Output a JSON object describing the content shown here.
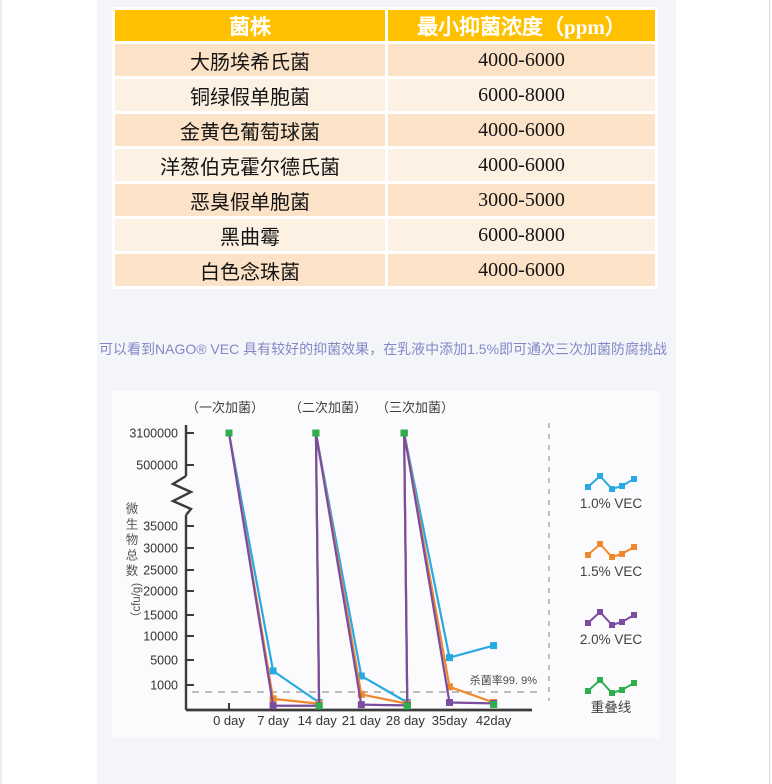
{
  "table": {
    "headers": [
      "菌株",
      "最小抑菌浓度（ppm）"
    ],
    "rows": [
      {
        "strain": "大肠埃希氏菌",
        "mic": "4000-6000"
      },
      {
        "strain": "铜绿假单胞菌",
        "mic": "6000-8000"
      },
      {
        "strain": "金黄色葡萄球菌",
        "mic": "4000-6000"
      },
      {
        "strain": "洋葱伯克霍尔德氏菌",
        "mic": "4000-6000"
      },
      {
        "strain": "恶臭假单胞菌",
        "mic": "3000-5000"
      },
      {
        "strain": "黑曲霉",
        "mic": "6000-8000"
      },
      {
        "strain": "白色念珠菌",
        "mic": "4000-6000"
      }
    ],
    "colors": {
      "header_bg": "#ffc000",
      "header_text": "#ffffff",
      "row_odd_bg": "#fce3c8",
      "row_even_bg": "#fdf1e3"
    }
  },
  "paragraph": {
    "text": "可以看到NAGO® VEC 具有较好的抑菌效果，在乳液中添加1.5%即可通次三次加菌防腐挑战",
    "color": "#8288c7"
  },
  "chart_data": {
    "type": "line",
    "annotations": [
      "（一次加菌）",
      "（二次加菌）",
      "（三次加菌）"
    ],
    "ylabel": "微生物总数",
    "ylabel_unit": "（cfu/g)",
    "yticks": [
      "3100000",
      "500000",
      "35000",
      "30000",
      "25000",
      "20000",
      "15000",
      "10000",
      "5000",
      "1000"
    ],
    "xticks": [
      "0 day",
      "7 day",
      "14 day",
      "21 day",
      "28 day",
      "35day",
      "42day"
    ],
    "axis_break": true,
    "grid": false,
    "legend_position": "right",
    "threshold": {
      "value": 1000,
      "label": "杀菌率99. 9%"
    },
    "series": [
      {
        "name": "1.0% VEC",
        "color": "#29a9e1",
        "points": [
          [
            0,
            3100000
          ],
          [
            7,
            3500
          ],
          [
            14.3,
            250
          ],
          [
            13.8,
            3100000
          ],
          [
            21,
            2800
          ],
          [
            28.3,
            250
          ],
          [
            27.8,
            3100000
          ],
          [
            35,
            5500
          ],
          [
            42,
            8000
          ]
        ]
      },
      {
        "name": "1.5% VEC",
        "color": "#f0882c",
        "points": [
          [
            0,
            3100000
          ],
          [
            7,
            450
          ],
          [
            14.3,
            180
          ],
          [
            13.8,
            3100000
          ],
          [
            21,
            700
          ],
          [
            28.3,
            180
          ],
          [
            27.8,
            3100000
          ],
          [
            35,
            1300
          ],
          [
            42,
            250
          ]
        ]
      },
      {
        "name": "2.0% VEC",
        "color": "#7a4d9f",
        "points": [
          [
            0,
            3100000
          ],
          [
            7,
            70
          ],
          [
            14.3,
            70
          ],
          [
            13.8,
            3100000
          ],
          [
            21,
            130
          ],
          [
            28.3,
            90
          ],
          [
            27.8,
            3100000
          ],
          [
            35,
            250
          ],
          [
            42,
            200
          ]
        ]
      },
      {
        "name": "重叠线",
        "color": "#2fae4d",
        "markers_only": true,
        "points": [
          [
            0,
            3100000
          ],
          [
            13.8,
            3100000
          ],
          [
            27.8,
            3100000
          ],
          [
            14.3,
            60
          ],
          [
            28.3,
            60
          ],
          [
            42,
            140
          ]
        ]
      }
    ]
  }
}
